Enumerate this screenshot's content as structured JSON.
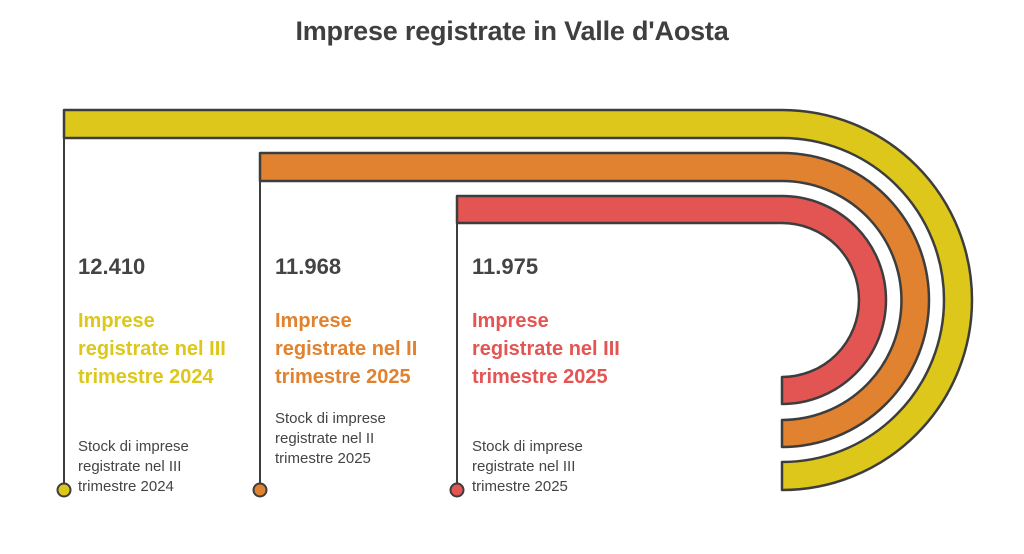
{
  "title": "Imprese registrate in Valle d'Aosta",
  "colors": {
    "stage1": "#DCC71A",
    "stage2": "#E0822F",
    "stage3": "#E35553",
    "outline": "#3d3d3d"
  },
  "stages": [
    {
      "value": "12.410",
      "heading": "Imprese registrate nel III trimestre 2024",
      "description": "Stock di imprese registrate nel III trimestre 2024",
      "color": "#DCC71A"
    },
    {
      "value": "11.968",
      "heading": "Imprese registrate nel II trimestre 2025",
      "description": "Stock di imprese registrate nel II trimestre 2025",
      "color": "#E0822F"
    },
    {
      "value": "11.975",
      "heading": "Imprese registrate nel III trimestre 2025",
      "description": "Stock di imprese registrate nel III trimestre 2025",
      "color": "#E35553"
    }
  ]
}
